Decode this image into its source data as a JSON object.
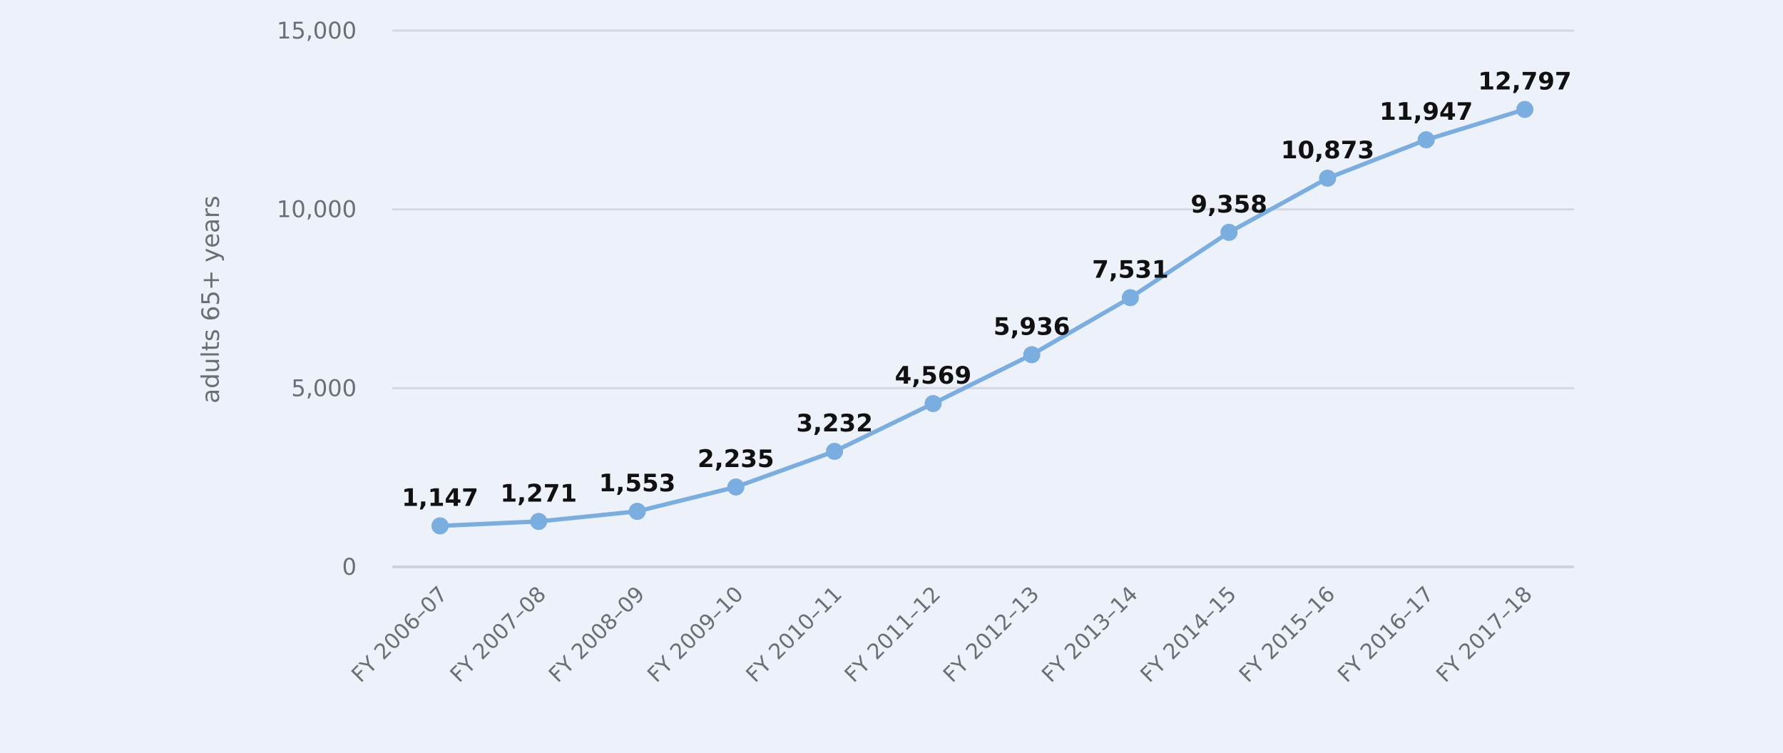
{
  "chart_data": {
    "type": "line",
    "title": "",
    "xlabel": "",
    "ylabel": "adults 65+ years",
    "ylim": [
      0,
      15000
    ],
    "yticks": [
      0,
      5000,
      10000,
      15000
    ],
    "ytick_labels": [
      "0",
      "5,000",
      "10,000",
      "15,000"
    ],
    "grid": true,
    "legend": null,
    "categories": [
      "FY 2006–07",
      "FY 2007–08",
      "FY 2008–09",
      "FY 2009–10",
      "FY 2010–11",
      "FY 2011–12",
      "FY 2012–13",
      "FY 2013–14",
      "FY 2014–15",
      "FY 2015–16",
      "FY 2016–17",
      "FY 2017–18"
    ],
    "series": [
      {
        "name": "adults 65+ years",
        "color": "#7aade0",
        "values": [
          1147,
          1271,
          1553,
          2235,
          3232,
          4569,
          5936,
          7531,
          9358,
          10873,
          11947,
          12797
        ],
        "labels": [
          "1,147",
          "1,271",
          "1,553",
          "2,235",
          "3,232",
          "4,569",
          "5,936",
          "7,531",
          "9,358",
          "10,873",
          "11,947",
          "12,797"
        ]
      }
    ]
  },
  "colors": {
    "background": "#edf2fa",
    "line": "#7aade0",
    "grid": "#d3d8e0",
    "tick_text": "#6b6f75",
    "data_label": "#111111"
  }
}
